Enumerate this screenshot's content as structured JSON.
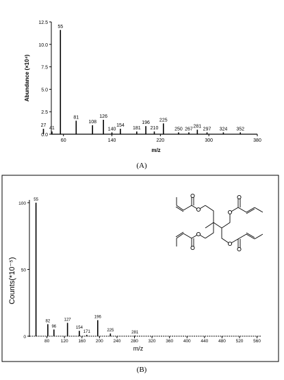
{
  "chart_data": [
    {
      "type": "bar",
      "panel_label": "(A)",
      "xlabel": "m/z",
      "ylabel": "Abundance (×10⁴)",
      "xlim": [
        40,
        380
      ],
      "ylim": [
        0,
        12.5
      ],
      "xticks": [
        60,
        140,
        220,
        300,
        380
      ],
      "yticks": [
        "0.0",
        "2.5",
        "5.0",
        "7.5",
        "10.0",
        "12.5"
      ],
      "series": [
        {
          "peaks": [
            {
              "x": 27,
              "y": 0.6,
              "label": "27"
            },
            {
              "x": 41,
              "y": 0.3,
              "label": "41"
            },
            {
              "x": 55,
              "y": 11.6,
              "label": "55"
            },
            {
              "x": 81,
              "y": 1.5,
              "label": "81"
            },
            {
              "x": 108,
              "y": 1.0,
              "label": "108"
            },
            {
              "x": 126,
              "y": 1.6,
              "label": "126"
            },
            {
              "x": 140,
              "y": 0.2,
              "label": "140"
            },
            {
              "x": 154,
              "y": 0.6,
              "label": "154"
            },
            {
              "x": 181,
              "y": 0.3,
              "label": "181"
            },
            {
              "x": 196,
              "y": 0.9,
              "label": "196"
            },
            {
              "x": 210,
              "y": 0.3,
              "label": "210"
            },
            {
              "x": 225,
              "y": 1.2,
              "label": "225"
            },
            {
              "x": 250,
              "y": 0.2,
              "label": "250"
            },
            {
              "x": 267,
              "y": 0.2,
              "label": "267"
            },
            {
              "x": 281,
              "y": 0.5,
              "label": "281"
            },
            {
              "x": 297,
              "y": 0.2,
              "label": "297"
            },
            {
              "x": 324,
              "y": 0.2,
              "label": "324"
            },
            {
              "x": 352,
              "y": 0.2,
              "label": "352"
            }
          ]
        }
      ]
    },
    {
      "type": "bar",
      "panel_label": "(B)",
      "xlabel": "m/z",
      "ylabel": "Counts(*10⁻⁵)",
      "xlim": [
        40,
        570
      ],
      "ylim": [
        0,
        100
      ],
      "xticks": [
        80,
        120,
        160,
        200,
        240,
        280,
        320,
        360,
        400,
        440,
        480,
        520,
        560
      ],
      "yticks": [
        "0",
        "50",
        "100"
      ],
      "series": [
        {
          "peaks": [
            {
              "x": 55,
              "y": 100,
              "label": "55"
            },
            {
              "x": 82,
              "y": 9,
              "label": "82"
            },
            {
              "x": 96,
              "y": 5,
              "label": "96"
            },
            {
              "x": 127,
              "y": 10,
              "label": "127"
            },
            {
              "x": 154,
              "y": 4,
              "label": "154"
            },
            {
              "x": 171,
              "y": 1,
              "label": "171"
            },
            {
              "x": 196,
              "y": 12,
              "label": "196"
            },
            {
              "x": 225,
              "y": 2,
              "label": "225"
            },
            {
              "x": 281,
              "y": 0.5,
              "label": "281"
            }
          ]
        }
      ]
    }
  ]
}
